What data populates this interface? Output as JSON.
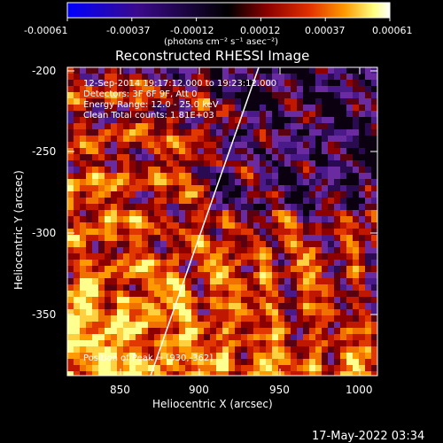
{
  "colorbar": {
    "ticks": [
      "-0.00061",
      "-0.00037",
      "-0.00012",
      "0.00012",
      "0.00037",
      "0.00061"
    ],
    "label": "(photons cm⁻² s⁻¹ asec⁻²)",
    "colors": [
      "#0000ff",
      "#3a0a8a",
      "#000000",
      "#8c0000",
      "#e03000",
      "#ff9a00",
      "#ffff80",
      "#ffffff"
    ]
  },
  "title": "Reconstructed RHESSI Image",
  "info": {
    "time_range": "12-Sep-2014 19:17:12.000 to 19:23:12.000",
    "detectors": "Detectors: 3F 6F 9F, Att 0",
    "energy": "Energy Range: 12.0 - 25.0 keV",
    "clean": "Clean    Total counts: 1.81E+03",
    "peak": "Position of Peak = [930,-362]"
  },
  "axes": {
    "x_label": "Heliocentric X (arcsec)",
    "y_label": "Heliocentric Y (arcsec)",
    "x_ticks": [
      "850",
      "900",
      "950",
      "1000"
    ],
    "y_ticks": [
      "-200",
      "-250",
      "-300",
      "-350"
    ],
    "x_range": [
      820,
      1010
    ],
    "y_range": [
      -385,
      -195
    ]
  },
  "timestamp": "17-May-2022 03:34"
}
